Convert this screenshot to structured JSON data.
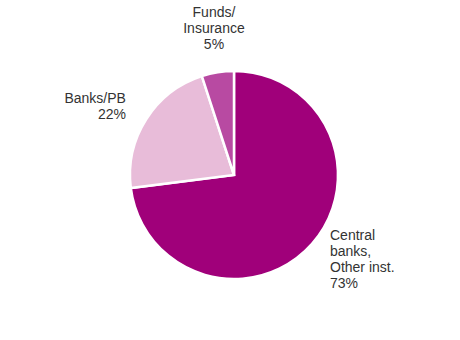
{
  "chart_data": {
    "type": "pie",
    "categories": [
      "Central\nbanks,\nOther inst.",
      "Banks/PB",
      "Funds/\nInsurance"
    ],
    "values": [
      73,
      22,
      5
    ],
    "value_labels": [
      "73%",
      "22%",
      "5%"
    ],
    "colors": [
      "#a0007a",
      "#e8bcd9",
      "#b84aa2"
    ],
    "data_labels": true
  }
}
